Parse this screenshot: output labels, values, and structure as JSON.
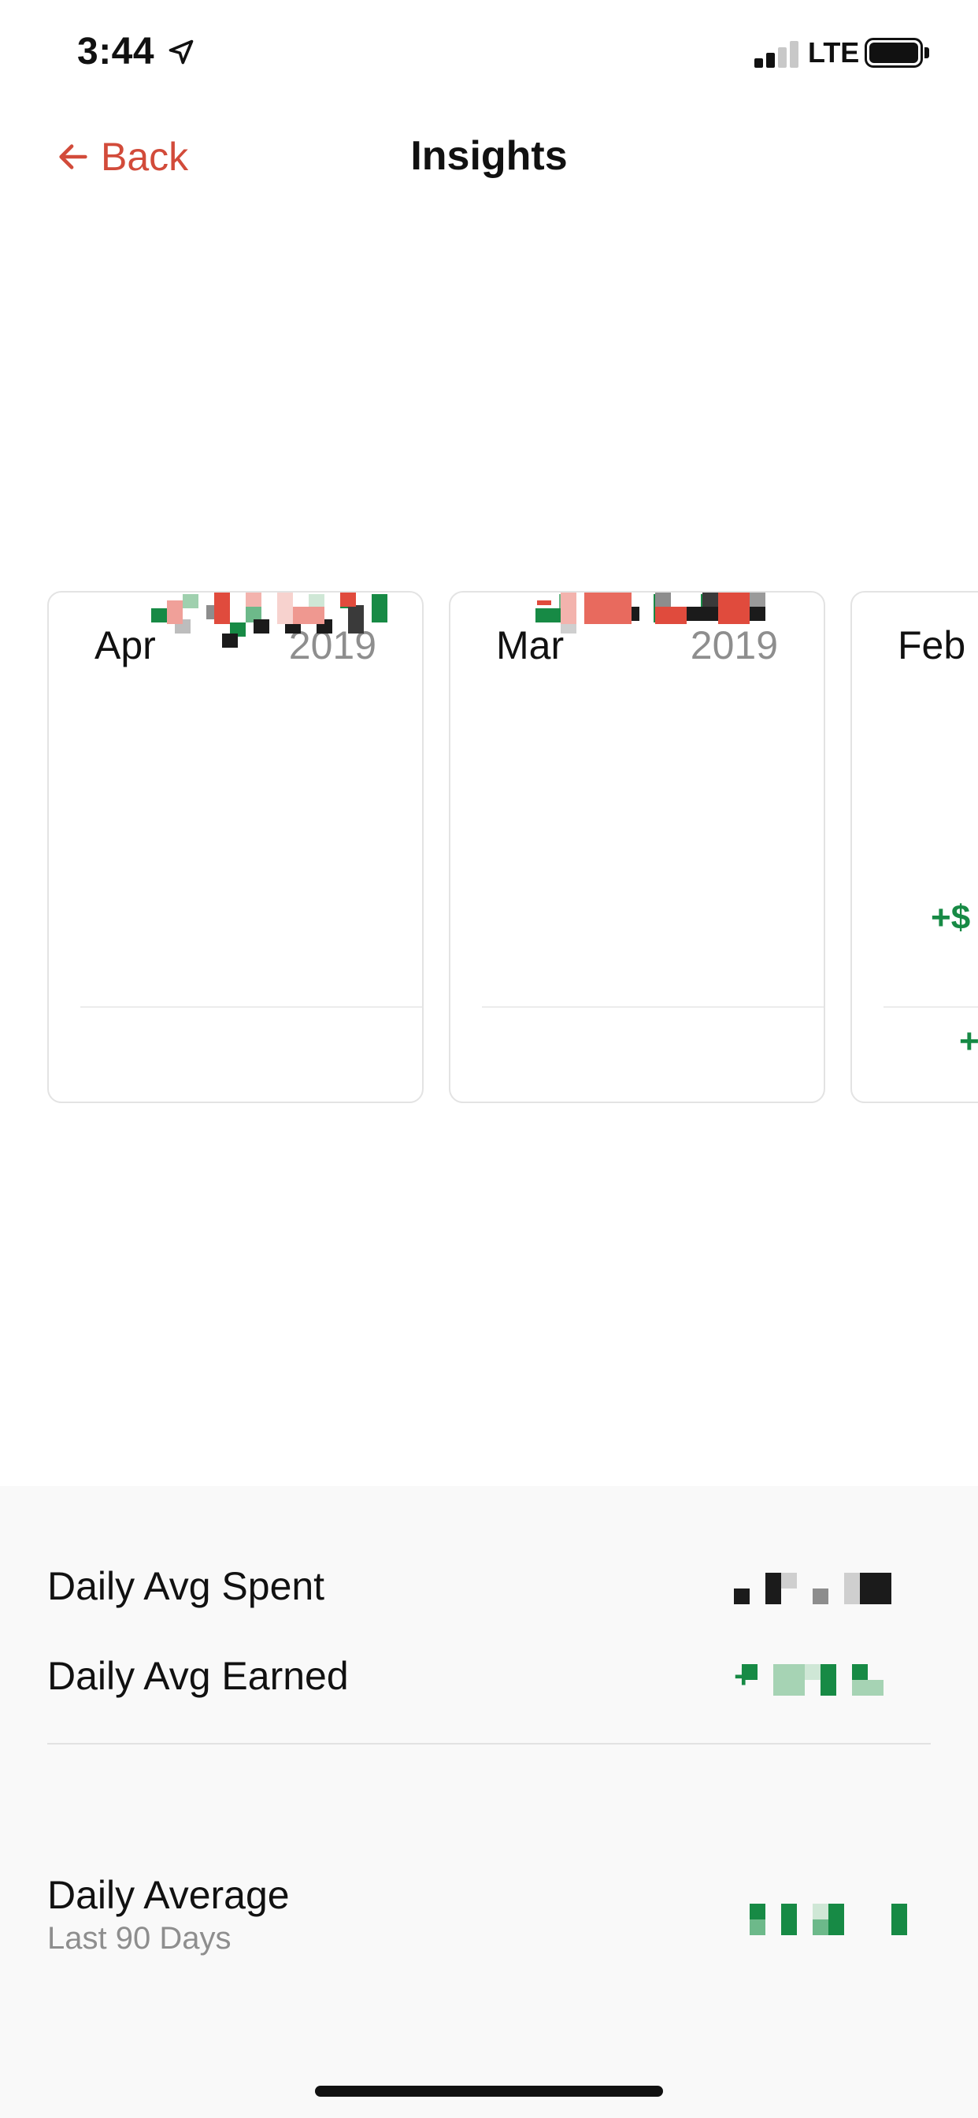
{
  "status_bar": {
    "time": "3:44",
    "network": "LTE"
  },
  "nav": {
    "back_label": "Back",
    "title": "Insights"
  },
  "months": [
    {
      "month": "Apr",
      "year": "2019"
    },
    {
      "month": "Mar",
      "year": "2019"
    },
    {
      "month": "Feb",
      "year": "",
      "earned_prefix": "+$",
      "diff_prefix": "+"
    }
  ],
  "stats": {
    "daily_avg_spent_label": "Daily Avg Spent",
    "daily_avg_earned_label": "Daily Avg Earned",
    "daily_average_label": "Daily Average",
    "daily_average_sub": "Last 90 Days",
    "earned_prefix": "+"
  },
  "colors": {
    "accent": "#d24b3a",
    "positive": "#178a45",
    "negative": "#e04b3d"
  }
}
